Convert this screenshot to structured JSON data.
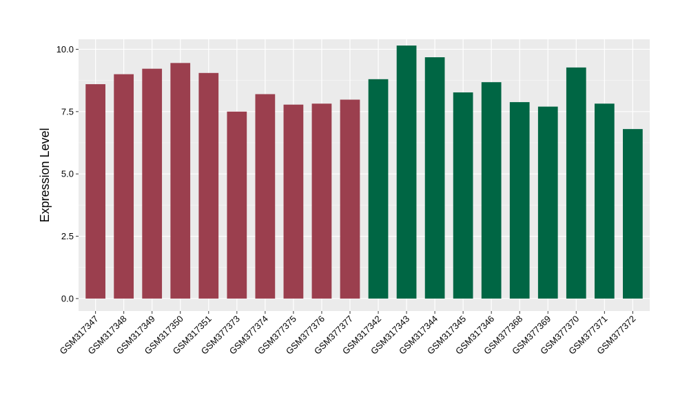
{
  "chart_data": {
    "type": "bar",
    "title": "",
    "xlabel": "",
    "ylabel": "Expression Level",
    "ylim": [
      -0.5,
      10.4
    ],
    "yticks": [
      0.0,
      2.5,
      5.0,
      7.5,
      10.0
    ],
    "ytick_labels": [
      "0.0",
      "2.5",
      "5.0",
      "7.5",
      "10.0"
    ],
    "grid": true,
    "legend": "none",
    "categories": [
      "GSM317347",
      "GSM317348",
      "GSM317349",
      "GSM317350",
      "GSM317351",
      "GSM377373",
      "GSM377374",
      "GSM377375",
      "GSM377376",
      "GSM377377",
      "GSM317342",
      "GSM317343",
      "GSM317344",
      "GSM317345",
      "GSM317346",
      "GSM377368",
      "GSM377369",
      "GSM377370",
      "GSM377371",
      "GSM377372"
    ],
    "values": [
      8.6,
      9.0,
      9.22,
      9.45,
      9.05,
      7.5,
      8.2,
      7.78,
      7.82,
      7.98,
      8.8,
      10.15,
      9.68,
      8.27,
      8.68,
      7.88,
      7.7,
      9.27,
      7.82,
      6.8
    ],
    "groups": [
      {
        "color": "#9b3f4e",
        "count": 10
      },
      {
        "color": "#006644",
        "count": 10
      }
    ],
    "colors": {
      "panel_background": "#ebebeb",
      "grid_major": "#ffffff",
      "grid_minor": "#f5f5f5",
      "axis_text": "#000000",
      "tick_mark": "#333333"
    }
  }
}
